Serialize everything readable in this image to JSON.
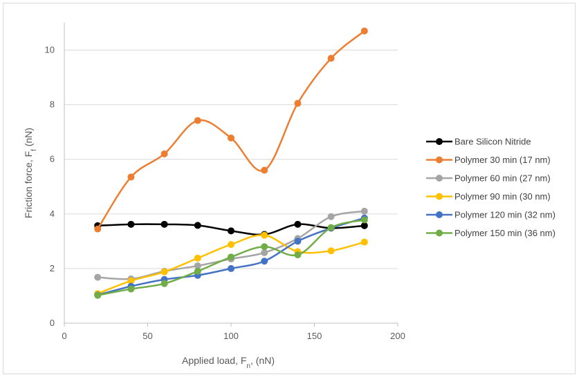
{
  "chart_data": {
    "type": "line",
    "smooth": true,
    "xlabel": "Applied load, F",
    "xlabel_sub": "n",
    "xlabel_suffix": ", (nN)",
    "ylabel": "Friction force, F",
    "ylabel_sub": "f",
    "ylabel_suffix": " (nN)",
    "xlim": [
      0,
      200
    ],
    "ylim": [
      0,
      11
    ],
    "xticks": [
      "0",
      "50",
      "100",
      "150",
      "200"
    ],
    "yticks": [
      "0",
      "2",
      "4",
      "6",
      "8",
      "10"
    ],
    "grid": "horizontal",
    "legend_position": "right",
    "x": [
      20,
      40,
      60,
      80,
      100,
      120,
      140,
      160,
      180
    ],
    "series": [
      {
        "name": "Bare Silicon Nitride",
        "color": "#000000",
        "values": [
          3.57,
          3.62,
          3.62,
          3.58,
          3.38,
          3.25,
          3.62,
          3.48,
          3.57
        ]
      },
      {
        "name": "Polymer 30 min (17 nm)",
        "color": "#ED7D31",
        "values": [
          3.45,
          5.35,
          6.2,
          7.42,
          6.78,
          5.6,
          8.05,
          9.7,
          10.7
        ]
      },
      {
        "name": "Polymer 60 min (27 nm)",
        "color": "#A5A5A5",
        "values": [
          1.68,
          1.62,
          1.9,
          2.1,
          2.35,
          2.58,
          3.1,
          3.9,
          4.1
        ]
      },
      {
        "name": "Polymer 90 min (30 nm)",
        "color": "#FFC000",
        "values": [
          1.08,
          1.55,
          1.88,
          2.38,
          2.88,
          3.22,
          2.62,
          2.65,
          2.97
        ]
      },
      {
        "name": "Polymer 120 min (32 nm)",
        "color": "#4472C4",
        "values": [
          1.03,
          1.35,
          1.6,
          1.75,
          2.0,
          2.27,
          3.0,
          3.48,
          3.85
        ]
      },
      {
        "name": "Polymer 150 min (36 nm)",
        "color": "#70AD47",
        "values": [
          1.02,
          1.25,
          1.45,
          1.9,
          2.42,
          2.8,
          2.5,
          3.5,
          3.78
        ]
      }
    ]
  }
}
